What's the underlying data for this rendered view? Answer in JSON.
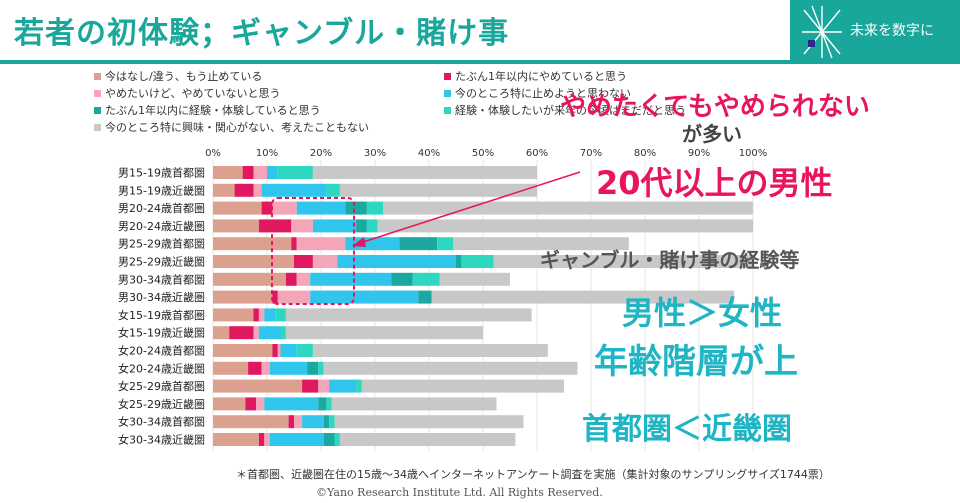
{
  "header": {
    "title": "若者の初体験；ギャンブル・賭け事",
    "brand": "未来を数字に"
  },
  "annotations": {
    "a1": "やめたくてもやめられない",
    "a2": "が多い",
    "a3": "20代以上の男性",
    "a4": "ギャンブル・賭け事の経験等",
    "a5": "男性＞女性",
    "a6": "年齢階層が上",
    "a7": "首都圏＜近畿圏"
  },
  "footnote": "＊首都圏、近畿圏在住の15歳～34歳へインターネットアンケート調査を実施（集計対象のサンプリングサイズ1744票）",
  "copyright": "©Yano Research Institute Ltd. All Rights Reserved.",
  "colors": {
    "accent": "#1aa79b",
    "series": [
      "#dca08f",
      "#e0185f",
      "#f4a6b8",
      "#2fc5ec",
      "#1aa8a0",
      "#2ed8c0",
      "#c8c8c8"
    ]
  },
  "chart_data": {
    "type": "bar",
    "orientation": "horizontal",
    "stacked": true,
    "xlim": [
      0,
      100
    ],
    "xticks": [
      "0%",
      "10%",
      "20%",
      "30%",
      "40%",
      "50%",
      "60%",
      "70%",
      "80%",
      "90%",
      "100%"
    ],
    "categories": [
      "男15-19歳首都圏",
      "男15-19歳近畿圏",
      "男20-24歳首都圏",
      "男20-24歳近畿圏",
      "男25-29歳首都圏",
      "男25-29歳近畿圏",
      "男30-34歳首都圏",
      "男30-34歳近畿圏",
      "女15-19歳首都圏",
      "女15-19歳近畿圏",
      "女20-24歳首都圏",
      "女20-24歳近畿圏",
      "女25-29歳首都圏",
      "女25-29歳近畿圏",
      "女30-34歳首都圏",
      "女30-34歳近畿圏"
    ],
    "series": [
      {
        "name": "今はなし/違う、もう止めている",
        "values": [
          5.5,
          4,
          9,
          8.5,
          14.5,
          15,
          13.5,
          11,
          7.5,
          3,
          11,
          6.5,
          16.5,
          6,
          14,
          8.5
        ]
      },
      {
        "name": "たぶん1年以内にやめていると思う",
        "values": [
          2,
          3.5,
          2,
          6,
          1,
          3.5,
          2,
          1,
          1,
          4.5,
          1,
          2.5,
          3,
          2,
          1,
          1
        ]
      },
      {
        "name": "やめたいけど、やめていないと思う",
        "values": [
          2.5,
          1.5,
          4.5,
          4,
          9,
          4.5,
          2.5,
          6,
          1,
          1,
          0.5,
          1.5,
          2,
          1.5,
          1.5,
          1
        ]
      },
      {
        "name": "今のところ特に止めようと思わない",
        "values": [
          2,
          12,
          9,
          8,
          10,
          22,
          15,
          20,
          2,
          4,
          3,
          7,
          5,
          10,
          4,
          10
        ]
      },
      {
        "name": "たぶん1年以内に経験・体験していると思う",
        "values": [
          0,
          0,
          4,
          2,
          7,
          1,
          4,
          2.5,
          0,
          0,
          0,
          2,
          0,
          1.5,
          1,
          2
        ]
      },
      {
        "name": "経験・体験したいが来年の今頃はまだだと思う",
        "values": [
          6.5,
          2.5,
          3,
          2,
          3,
          6,
          5,
          0,
          2,
          1,
          3,
          1,
          1,
          1,
          1,
          1
        ]
      },
      {
        "name": "今のところ特に興味・関心がない、考えたこともない",
        "values": [
          41.5,
          36.5,
          68.5,
          69.5,
          32.5,
          48,
          13,
          56,
          45.5,
          36.5,
          43.5,
          47,
          37.5,
          30.5,
          35,
          32.5
        ]
      }
    ]
  }
}
